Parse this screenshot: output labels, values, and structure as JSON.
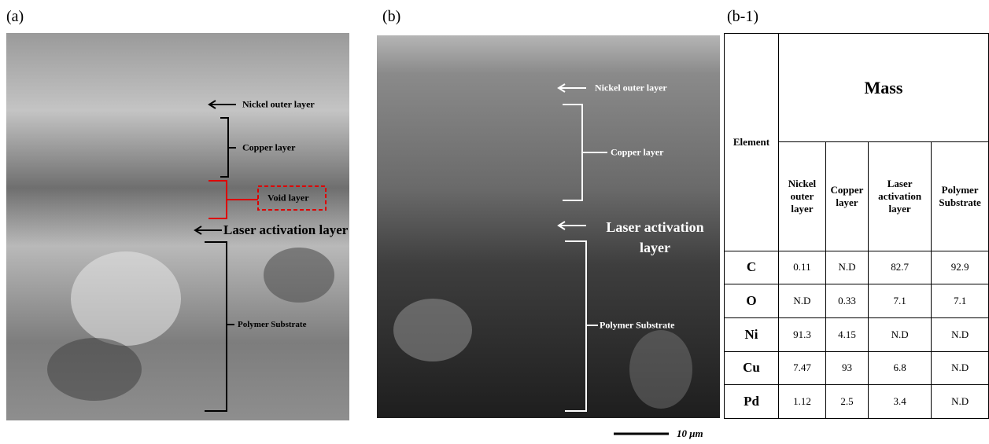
{
  "panel_a": {
    "label": "(a)",
    "annotations": [
      "Nickel outer layer",
      "Copper layer",
      "Void layer",
      "Laser activation layer",
      "Polymer Substrate"
    ]
  },
  "panel_b": {
    "label": "(b)",
    "annotations": [
      "Nickel outer layer",
      "Copper layer",
      "Laser activation layer",
      "Polymer Substrate"
    ],
    "scale_bar": "10 μm"
  },
  "table": {
    "label": "(b-1)",
    "header": "Element",
    "group": "Mass",
    "columns": [
      "Nickel outer layer",
      "Copper layer",
      "Laser activation layer",
      "Polymer Substrate"
    ],
    "rows": [
      [
        "C",
        0.11,
        "N.D",
        82.7,
        92.9
      ],
      [
        "O",
        "N.D",
        0.33,
        7.1,
        7.1
      ],
      [
        "Ni",
        91.3,
        4.15,
        "N.D",
        "N.D"
      ],
      [
        "Cu",
        7.47,
        93,
        6.8,
        "N.D"
      ],
      [
        "Pd",
        1.12,
        2.5,
        3.4,
        "N.D"
      ]
    ]
  }
}
